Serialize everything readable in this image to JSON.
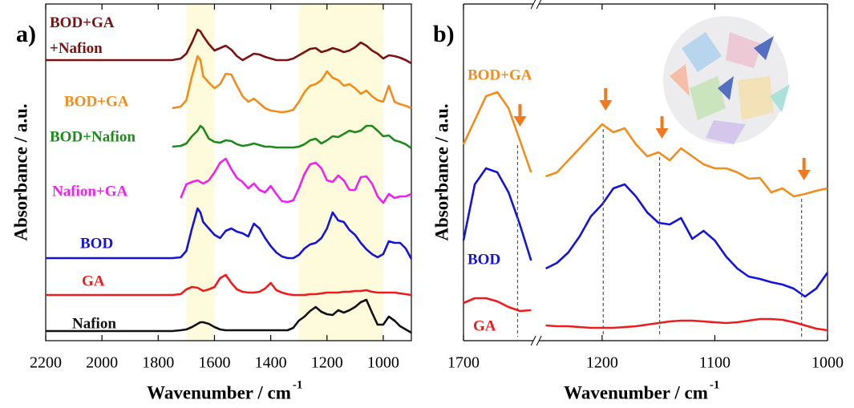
{
  "chart_data": [
    {
      "type": "line",
      "panel_label": "a)",
      "x_label": "Wavenumber / cm",
      "x_label_sup": "-1",
      "y_label": "Absorbance / a.u.",
      "xlim": [
        2200,
        900
      ],
      "xticks": [
        2200,
        2000,
        1800,
        1600,
        1400,
        1200,
        1000
      ],
      "ylim": [
        0,
        420
      ],
      "highlight_ranges": [
        [
          1700,
          1600
        ],
        [
          1300,
          1000
        ]
      ],
      "highlight_color": "#fdfbdc",
      "x": [
        2200,
        2000,
        1800,
        1750,
        1720,
        1700,
        1680,
        1660,
        1650,
        1640,
        1620,
        1600,
        1580,
        1560,
        1540,
        1520,
        1500,
        1480,
        1460,
        1440,
        1420,
        1400,
        1380,
        1360,
        1340,
        1320,
        1300,
        1280,
        1260,
        1240,
        1220,
        1200,
        1180,
        1160,
        1140,
        1120,
        1100,
        1080,
        1060,
        1040,
        1020,
        1000,
        980,
        960,
        940,
        920,
        900
      ],
      "series": [
        {
          "name": "BOD+GA +Nafion",
          "color": "#7a1212",
          "values": [
            350,
            350,
            350,
            350,
            352,
            358,
            372,
            388,
            386,
            380,
            370,
            362,
            365,
            368,
            363,
            355,
            350,
            354,
            358,
            357,
            354,
            352,
            350,
            350,
            350,
            352,
            356,
            360,
            364,
            365,
            360,
            362,
            365,
            363,
            360,
            362,
            366,
            372,
            368,
            362,
            358,
            352,
            356,
            355,
            353,
            350,
            346
          ]
        },
        {
          "name": "BOD+GA",
          "color": "#f28c1c",
          "values": [
            null,
            null,
            null,
            290,
            292,
            300,
            330,
            355,
            350,
            330,
            322,
            315,
            320,
            333,
            332,
            318,
            305,
            298,
            302,
            296,
            290,
            287,
            286,
            285,
            286,
            288,
            298,
            310,
            318,
            320,
            325,
            336,
            328,
            325,
            318,
            320,
            315,
            308,
            312,
            305,
            300,
            298,
            318,
            298,
            295,
            293,
            290
          ]
        },
        {
          "name": "BOD+Nafion",
          "color": "#1e8a1e",
          "values": [
            null,
            null,
            null,
            242,
            243,
            246,
            255,
            262,
            268,
            265,
            252,
            248,
            247,
            250,
            249,
            245,
            243,
            244,
            246,
            244,
            242,
            242,
            241,
            241,
            241,
            241,
            242,
            245,
            250,
            252,
            246,
            250,
            255,
            254,
            258,
            262,
            260,
            262,
            268,
            268,
            262,
            255,
            256,
            250,
            248,
            245,
            240
          ]
        },
        {
          "name": "Nafion+GA",
          "color": "#ee22ee",
          "values": [
            null,
            null,
            null,
            null,
            178,
            195,
            198,
            200,
            198,
            196,
            200,
            210,
            222,
            227,
            214,
            203,
            198,
            190,
            196,
            188,
            185,
            193,
            183,
            174,
            173,
            175,
            190,
            208,
            220,
            222,
            215,
            200,
            198,
            206,
            200,
            188,
            188,
            204,
            205,
            196,
            180,
            172,
            183,
            178,
            180,
            180,
            183
          ]
        },
        {
          "name": "BOD",
          "color": "#1414d8",
          "values": [
            103,
            103,
            103,
            103,
            104,
            112,
            140,
            165,
            160,
            148,
            140,
            132,
            128,
            137,
            140,
            136,
            134,
            130,
            146,
            140,
            128,
            118,
            110,
            105,
            103,
            103,
            107,
            115,
            120,
            122,
            128,
            140,
            160,
            150,
            148,
            138,
            132,
            122,
            114,
            108,
            104,
            108,
            124,
            122,
            122,
            115,
            102
          ]
        },
        {
          "name": "GA",
          "color": "#ee1c1c",
          "values": [
            57,
            57,
            57,
            57,
            58,
            64,
            67,
            66,
            64,
            62,
            64,
            67,
            78,
            82,
            72,
            64,
            61,
            60,
            60,
            61,
            65,
            72,
            63,
            60,
            58,
            57,
            57,
            57,
            58,
            58,
            59,
            60,
            60,
            60,
            61,
            61,
            62,
            62,
            63,
            61,
            60,
            60,
            60,
            60,
            59,
            58,
            57
          ]
        },
        {
          "name": "Nafion",
          "color": "#111111",
          "values": [
            12,
            12,
            12,
            12,
            13,
            14,
            17,
            21,
            23,
            23,
            21,
            17,
            14,
            13,
            13,
            13,
            13,
            13,
            13,
            13,
            13,
            13,
            13,
            13,
            13,
            16,
            25,
            30,
            37,
            42,
            36,
            33,
            32,
            38,
            35,
            38,
            42,
            48,
            51,
            35,
            20,
            20,
            30,
            25,
            18,
            14,
            10
          ]
        }
      ]
    },
    {
      "type": "line",
      "panel_label": "b)",
      "x_label": "Wavenumber / cm",
      "x_label_sup": "-1",
      "y_label": "Absorbance / a.u.",
      "x_segments": [
        [
          1700,
          1638
        ],
        [
          1256,
          1000
        ]
      ],
      "xticks": [
        1700,
        1200,
        1100,
        1000
      ],
      "ylim": [
        0,
        420
      ],
      "marker_lines": [
        1652,
        1199,
        1149,
        1023
      ],
      "marker_color": "#f07a20",
      "x": [
        1700,
        1690,
        1680,
        1670,
        1660,
        1650,
        1640,
        1250,
        1240,
        1230,
        1220,
        1210,
        1200,
        1190,
        1180,
        1170,
        1160,
        1150,
        1140,
        1130,
        1120,
        1110,
        1100,
        1090,
        1080,
        1070,
        1060,
        1050,
        1040,
        1030,
        1020,
        1010,
        1000
      ],
      "series": [
        {
          "name": "BOD+GA",
          "color": "#f28c1c",
          "values": [
            245,
            275,
            305,
            310,
            290,
            250,
            210,
            205,
            210,
            225,
            240,
            255,
            270,
            260,
            265,
            245,
            230,
            235,
            225,
            240,
            230,
            220,
            215,
            215,
            210,
            202,
            203,
            185,
            190,
            180,
            183,
            187,
            190
          ]
        },
        {
          "name": "BOD",
          "color": "#1414d8",
          "values": [
            125,
            195,
            215,
            210,
            185,
            145,
            100,
            90,
            97,
            110,
            130,
            155,
            170,
            190,
            195,
            180,
            160,
            147,
            145,
            153,
            127,
            137,
            125,
            105,
            90,
            80,
            77,
            73,
            70,
            65,
            55,
            65,
            85
          ]
        },
        {
          "name": "GA",
          "color": "#ee1c1c",
          "values": [
            47,
            53,
            53,
            49,
            42,
            37,
            38,
            19,
            18,
            18,
            17,
            16,
            16,
            16,
            17,
            18,
            20,
            22,
            24,
            25,
            25,
            24,
            23,
            22,
            23,
            25,
            27,
            27,
            26,
            23,
            19,
            15,
            13
          ]
        }
      ]
    }
  ]
}
